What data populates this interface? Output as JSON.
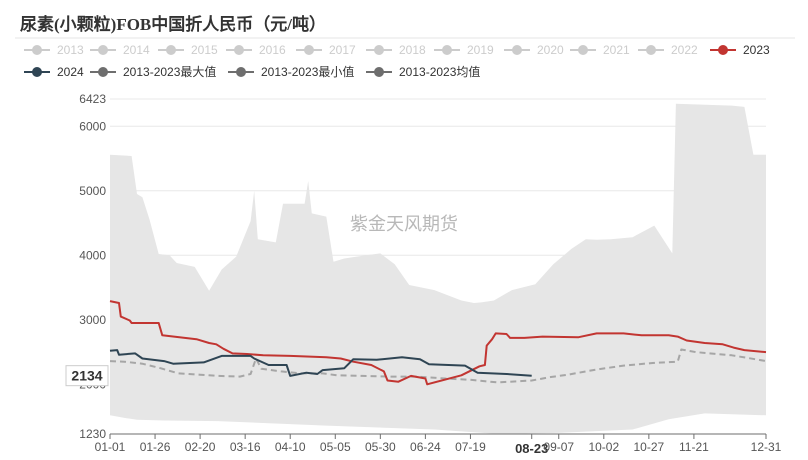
{
  "chart_data": {
    "type": "line",
    "title": "尿素(小颗粒)FOB中国折人民币（元/吨）",
    "watermark": "紫金天风期货",
    "x_tick_labels": [
      "01-01",
      "01-26",
      "02-20",
      "03-16",
      "04-10",
      "05-05",
      "05-30",
      "06-24",
      "07-19",
      "08-23",
      "09-07",
      "10-02",
      "10-27",
      "11-21",
      "12-31"
    ],
    "x_tick_positions_days": [
      0,
      25,
      50,
      75,
      100,
      125,
      150,
      175,
      200,
      234,
      249,
      274,
      299,
      324,
      364
    ],
    "x_tick_partial": {
      "9": "7"
    },
    "highlighted_x_label": "08-23",
    "hover_value_label": "2134",
    "y_ticks": [
      1230,
      2000,
      3000,
      4000,
      5000,
      6000,
      6423
    ],
    "ylim": [
      1230,
      6423
    ],
    "xlim": [
      0,
      364
    ],
    "grid": "horizontal",
    "legend": {
      "placement": "top",
      "items": [
        {
          "name": "2013",
          "color": "#cccccc",
          "active": false,
          "marker": "circle"
        },
        {
          "name": "2014",
          "color": "#cccccc",
          "active": false,
          "marker": "circle"
        },
        {
          "name": "2015",
          "color": "#cccccc",
          "active": false,
          "marker": "circle"
        },
        {
          "name": "2016",
          "color": "#cccccc",
          "active": false,
          "marker": "circle"
        },
        {
          "name": "2017",
          "color": "#cccccc",
          "active": false,
          "marker": "circle"
        },
        {
          "name": "2018",
          "color": "#cccccc",
          "active": false,
          "marker": "circle"
        },
        {
          "name": "2019",
          "color": "#cccccc",
          "active": false,
          "marker": "circle"
        },
        {
          "name": "2020",
          "color": "#cccccc",
          "active": false,
          "marker": "circle"
        },
        {
          "name": "2021",
          "color": "#cccccc",
          "active": false,
          "marker": "circle"
        },
        {
          "name": "2022",
          "color": "#cccccc",
          "active": false,
          "marker": "circle"
        },
        {
          "name": "2023",
          "color": "#c23531",
          "active": true,
          "marker": "circle"
        },
        {
          "name": "2024",
          "color": "#2f4554",
          "active": true,
          "marker": "circle"
        },
        {
          "name": "2013-2023最大值",
          "color": "#6e6e6e",
          "active": true,
          "marker": "circle"
        },
        {
          "name": "2013-2023最小值",
          "color": "#6e6e6e",
          "active": true,
          "marker": "circle"
        },
        {
          "name": "2013-2023均值",
          "color": "#6e6e6e",
          "active": true,
          "marker": "circle"
        }
      ]
    },
    "series": [
      {
        "name": "2013-2023最大值",
        "style": "band-top",
        "color": "#e6e6e6",
        "points": [
          [
            0,
            5560
          ],
          [
            12,
            5540
          ],
          [
            15,
            4950
          ],
          [
            18,
            4900
          ],
          [
            22,
            4550
          ],
          [
            27,
            4020
          ],
          [
            33,
            4000
          ],
          [
            37,
            3880
          ],
          [
            47,
            3820
          ],
          [
            55,
            3450
          ],
          [
            62,
            3780
          ],
          [
            70,
            3980
          ],
          [
            78,
            4530
          ],
          [
            80,
            5000
          ],
          [
            82,
            4250
          ],
          [
            92,
            4200
          ],
          [
            96,
            4800
          ],
          [
            108,
            4800
          ],
          [
            110,
            5150
          ],
          [
            112,
            4650
          ],
          [
            120,
            4600
          ],
          [
            124,
            3900
          ],
          [
            130,
            3950
          ],
          [
            142,
            4000
          ],
          [
            150,
            4030
          ],
          [
            158,
            3860
          ],
          [
            166,
            3540
          ],
          [
            180,
            3460
          ],
          [
            195,
            3300
          ],
          [
            202,
            3260
          ],
          [
            206,
            3270
          ],
          [
            213,
            3300
          ],
          [
            223,
            3460
          ],
          [
            236,
            3550
          ],
          [
            246,
            3860
          ],
          [
            256,
            4100
          ],
          [
            264,
            4250
          ],
          [
            270,
            4240
          ],
          [
            278,
            4250
          ],
          [
            290,
            4280
          ],
          [
            302,
            4460
          ],
          [
            312,
            4030
          ],
          [
            314,
            6350
          ],
          [
            345,
            6320
          ],
          [
            352,
            6300
          ],
          [
            357,
            5560
          ],
          [
            364,
            5560
          ]
        ]
      },
      {
        "name": "2013-2023最小值",
        "style": "band-bottom",
        "color": "#e6e6e6",
        "points": [
          [
            0,
            1520
          ],
          [
            8,
            1480
          ],
          [
            15,
            1450
          ],
          [
            30,
            1440
          ],
          [
            60,
            1430
          ],
          [
            120,
            1360
          ],
          [
            180,
            1300
          ],
          [
            216,
            1230
          ],
          [
            250,
            1250
          ],
          [
            290,
            1300
          ],
          [
            310,
            1460
          ],
          [
            330,
            1550
          ],
          [
            364,
            1520
          ]
        ]
      },
      {
        "name": "2013-2023均值",
        "style": "dashed",
        "color": "#a6a6a6",
        "points": [
          [
            0,
            2360
          ],
          [
            8,
            2350
          ],
          [
            18,
            2320
          ],
          [
            28,
            2250
          ],
          [
            38,
            2170
          ],
          [
            50,
            2150
          ],
          [
            60,
            2130
          ],
          [
            72,
            2120
          ],
          [
            78,
            2160
          ],
          [
            81,
            2400
          ],
          [
            84,
            2240
          ],
          [
            95,
            2200
          ],
          [
            106,
            2170
          ],
          [
            118,
            2170
          ],
          [
            126,
            2140
          ],
          [
            140,
            2130
          ],
          [
            155,
            2120
          ],
          [
            170,
            2120
          ],
          [
            186,
            2090
          ],
          [
            200,
            2070
          ],
          [
            215,
            2030
          ],
          [
            234,
            2060
          ],
          [
            244,
            2110
          ],
          [
            254,
            2150
          ],
          [
            270,
            2230
          ],
          [
            285,
            2290
          ],
          [
            301,
            2330
          ],
          [
            315,
            2350
          ],
          [
            317,
            2540
          ],
          [
            325,
            2500
          ],
          [
            345,
            2450
          ],
          [
            360,
            2380
          ],
          [
            364,
            2360
          ]
        ]
      },
      {
        "name": "2023",
        "style": "solid",
        "color": "#c23531",
        "points": [
          [
            0,
            3290
          ],
          [
            5,
            3260
          ],
          [
            6,
            3050
          ],
          [
            11,
            2990
          ],
          [
            12,
            2950
          ],
          [
            27,
            2950
          ],
          [
            29,
            2760
          ],
          [
            48,
            2700
          ],
          [
            55,
            2640
          ],
          [
            59,
            2620
          ],
          [
            63,
            2550
          ],
          [
            68,
            2480
          ],
          [
            76,
            2470
          ],
          [
            85,
            2450
          ],
          [
            100,
            2440
          ],
          [
            120,
            2420
          ],
          [
            128,
            2400
          ],
          [
            135,
            2350
          ],
          [
            145,
            2300
          ],
          [
            152,
            2200
          ],
          [
            154,
            2060
          ],
          [
            160,
            2040
          ],
          [
            167,
            2130
          ],
          [
            175,
            2090
          ],
          [
            176,
            2000
          ],
          [
            195,
            2140
          ],
          [
            205,
            2280
          ],
          [
            208,
            2300
          ],
          [
            209,
            2600
          ],
          [
            212,
            2700
          ],
          [
            214,
            2790
          ],
          [
            220,
            2780
          ],
          [
            222,
            2720
          ],
          [
            230,
            2720
          ],
          [
            240,
            2740
          ],
          [
            260,
            2730
          ],
          [
            270,
            2790
          ],
          [
            285,
            2790
          ],
          [
            295,
            2760
          ],
          [
            310,
            2760
          ],
          [
            315,
            2740
          ],
          [
            320,
            2680
          ],
          [
            330,
            2640
          ],
          [
            340,
            2620
          ],
          [
            346,
            2570
          ],
          [
            352,
            2530
          ],
          [
            364,
            2500
          ]
        ]
      },
      {
        "name": "2024",
        "style": "solid",
        "color": "#2f4554",
        "points": [
          [
            0,
            2520
          ],
          [
            4,
            2530
          ],
          [
            5,
            2460
          ],
          [
            14,
            2480
          ],
          [
            18,
            2400
          ],
          [
            30,
            2360
          ],
          [
            35,
            2320
          ],
          [
            52,
            2340
          ],
          [
            62,
            2440
          ],
          [
            78,
            2440
          ],
          [
            80,
            2400
          ],
          [
            88,
            2300
          ],
          [
            98,
            2300
          ],
          [
            100,
            2130
          ],
          [
            109,
            2180
          ],
          [
            115,
            2160
          ],
          [
            118,
            2220
          ],
          [
            130,
            2250
          ],
          [
            135,
            2390
          ],
          [
            148,
            2380
          ],
          [
            162,
            2420
          ],
          [
            172,
            2390
          ],
          [
            177,
            2310
          ],
          [
            197,
            2290
          ],
          [
            204,
            2180
          ],
          [
            220,
            2160
          ],
          [
            234,
            2134
          ]
        ]
      }
    ]
  }
}
